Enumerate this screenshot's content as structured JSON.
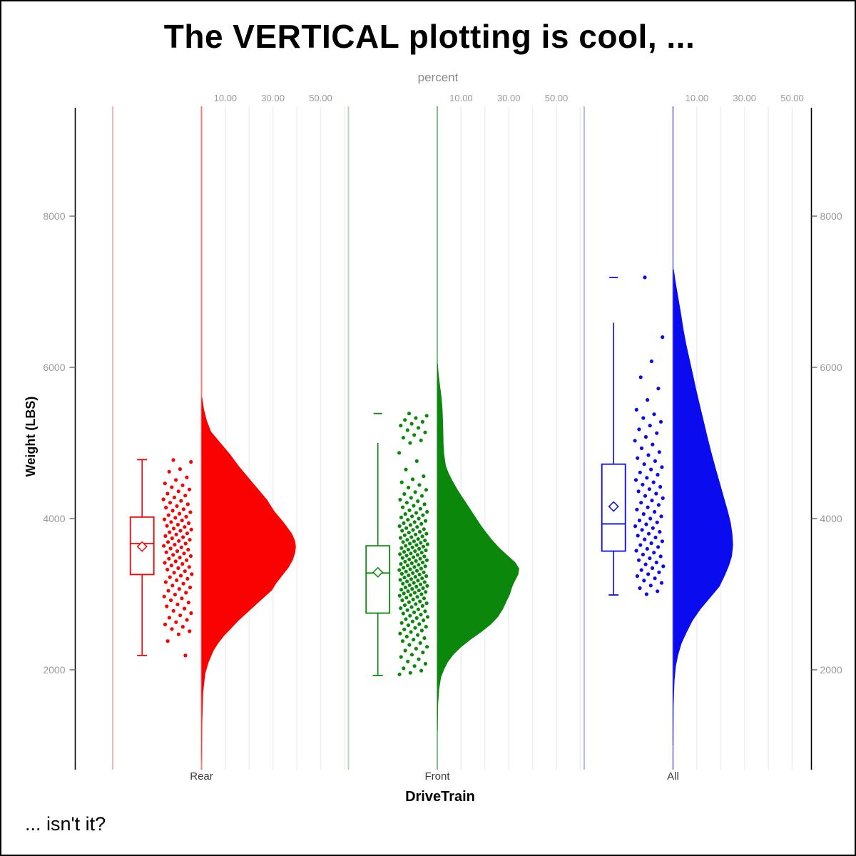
{
  "chart_data": {
    "type": "raincloud-half-violin-box-strip",
    "title": "The VERTICAL plotting is cool, ...",
    "footnote": "... isn't it?",
    "x_axis": {
      "label": "DriveTrain",
      "categories": [
        "Rear",
        "Front",
        "All"
      ]
    },
    "y_axis": {
      "label": "Weight (LBS)",
      "ticks": [
        2000,
        4000,
        6000,
        8000
      ],
      "range": [
        750,
        9400
      ]
    },
    "right_axis": {
      "ticks": [
        2000,
        4000,
        6000,
        8000
      ]
    },
    "top_axis": {
      "label": "percent",
      "tick_labels": [
        "10.00",
        "30.00",
        "50.00"
      ],
      "tick_values": [
        10,
        30,
        50
      ],
      "minor_step": 10,
      "max_percent": 60,
      "grid": true
    },
    "legend": "none",
    "colors": {
      "grid": "#efefef",
      "axis": "#000000",
      "tick": "#666666",
      "tick_label": "#999999"
    },
    "groups": [
      {
        "name": "Rear",
        "color": "#fa0202",
        "light_color": "#f6b6b6",
        "base_color": "#ef8080",
        "box": {
          "mean": 3630,
          "median": 3670,
          "q1": 3260,
          "q3": 4020,
          "whisker_low": 2190,
          "whisker_high": 4780,
          "cap_low": true,
          "cap_high": true,
          "max_dash": null
        },
        "violin": [
          [
            5600,
            0.3
          ],
          [
            5450,
            1
          ],
          [
            5300,
            2.2
          ],
          [
            5150,
            4
          ],
          [
            5000,
            8
          ],
          [
            4850,
            12
          ],
          [
            4700,
            15.5
          ],
          [
            4550,
            19.5
          ],
          [
            4400,
            23.5
          ],
          [
            4250,
            27.5
          ],
          [
            4100,
            30.5
          ],
          [
            3950,
            34.5
          ],
          [
            3800,
            38
          ],
          [
            3700,
            39.3
          ],
          [
            3630,
            39.6
          ],
          [
            3550,
            39.3
          ],
          [
            3450,
            38.3
          ],
          [
            3350,
            36.5
          ],
          [
            3250,
            34
          ],
          [
            3150,
            31.5
          ],
          [
            3050,
            29.5
          ],
          [
            2950,
            26
          ],
          [
            2850,
            22.5
          ],
          [
            2750,
            19
          ],
          [
            2650,
            15.5
          ],
          [
            2550,
            12.5
          ],
          [
            2450,
            9.5
          ],
          [
            2350,
            7
          ],
          [
            2250,
            5
          ],
          [
            2100,
            3
          ],
          [
            1950,
            1.6
          ],
          [
            1700,
            0.7
          ],
          [
            1300,
            0.3
          ],
          [
            800,
            0.1
          ]
        ],
        "points": [
          4775,
          4750,
          4655,
          4620,
          4545,
          4510,
          4465,
          4440,
          4415,
          4385,
          4360,
          4330,
          4305,
          4280,
          4255,
          4235,
          4210,
          4190,
          4165,
          4145,
          4125,
          4105,
          4085,
          4065,
          4045,
          4025,
          4010,
          3990,
          3975,
          3955,
          3940,
          3920,
          3905,
          3890,
          3870,
          3855,
          3840,
          3820,
          3805,
          3790,
          3770,
          3755,
          3740,
          3720,
          3705,
          3690,
          3670,
          3655,
          3640,
          3620,
          3605,
          3590,
          3570,
          3555,
          3540,
          3520,
          3505,
          3485,
          3470,
          3450,
          3435,
          3415,
          3400,
          3380,
          3360,
          3345,
          3325,
          3305,
          3285,
          3265,
          3245,
          3225,
          3205,
          3185,
          3160,
          3140,
          3115,
          3090,
          3070,
          3045,
          3020,
          2995,
          2970,
          2945,
          2920,
          2890,
          2865,
          2840,
          2810,
          2780,
          2750,
          2720,
          2690,
          2660,
          2630,
          2600,
          2570,
          2540,
          2510,
          2470,
          2380,
          2190
        ]
      },
      {
        "name": "Front",
        "color": "#0b870b",
        "light_color": "#b7d7b7",
        "base_color": "#85bb85",
        "box": {
          "mean": 3290,
          "median": 3280,
          "q1": 2750,
          "q3": 3640,
          "whisker_low": 1925,
          "whisker_high": 5000,
          "cap_low": true,
          "cap_high": false,
          "max_dash": 5390
        },
        "violin": [
          [
            6050,
            0.2
          ],
          [
            5900,
            0.6
          ],
          [
            5750,
            1.2
          ],
          [
            5600,
            1.8
          ],
          [
            5450,
            2.2
          ],
          [
            5300,
            2.4
          ],
          [
            5150,
            2.5
          ],
          [
            5000,
            2.6
          ],
          [
            4850,
            2.9
          ],
          [
            4700,
            3.6
          ],
          [
            4600,
            4.8
          ],
          [
            4500,
            6.4
          ],
          [
            4400,
            8.2
          ],
          [
            4300,
            10.2
          ],
          [
            4200,
            12.3
          ],
          [
            4100,
            14.4
          ],
          [
            4000,
            16.5
          ],
          [
            3900,
            18.6
          ],
          [
            3800,
            21
          ],
          [
            3700,
            23.5
          ],
          [
            3600,
            26.5
          ],
          [
            3500,
            30
          ],
          [
            3420,
            32.8
          ],
          [
            3340,
            34.4
          ],
          [
            3260,
            34
          ],
          [
            3180,
            32.7
          ],
          [
            3100,
            31.5
          ],
          [
            3000,
            30.5
          ],
          [
            2900,
            29
          ],
          [
            2800,
            27.5
          ],
          [
            2700,
            25.5
          ],
          [
            2600,
            22.5
          ],
          [
            2500,
            18.5
          ],
          [
            2400,
            14
          ],
          [
            2300,
            10
          ],
          [
            2200,
            6.8
          ],
          [
            2100,
            4.4
          ],
          [
            2000,
            2.8
          ],
          [
            1900,
            1.6
          ],
          [
            1750,
            0.8
          ],
          [
            1550,
            0.35
          ],
          [
            1200,
            0.12
          ]
        ],
        "points": [
          5390,
          5360,
          5330,
          5305,
          5280,
          5255,
          5230,
          5200,
          5170,
          5140,
          5105,
          5070,
          5035,
          5000,
          4870,
          4760,
          4650,
          4560,
          4520,
          4480,
          4445,
          4410,
          4380,
          4350,
          4325,
          4300,
          4275,
          4250,
          4230,
          4210,
          4190,
          4170,
          4150,
          4130,
          4110,
          4090,
          4075,
          4060,
          4045,
          4030,
          4015,
          4000,
          3985,
          3970,
          3955,
          3940,
          3930,
          3915,
          3900,
          3890,
          3875,
          3860,
          3850,
          3840,
          3825,
          3815,
          3800,
          3790,
          3780,
          3765,
          3755,
          3745,
          3730,
          3720,
          3710,
          3700,
          3690,
          3680,
          3670,
          3660,
          3650,
          3640,
          3630,
          3620,
          3610,
          3600,
          3590,
          3580,
          3570,
          3560,
          3550,
          3540,
          3530,
          3520,
          3510,
          3500,
          3490,
          3480,
          3470,
          3460,
          3450,
          3440,
          3430,
          3420,
          3410,
          3400,
          3390,
          3380,
          3370,
          3360,
          3350,
          3340,
          3330,
          3320,
          3310,
          3300,
          3290,
          3280,
          3270,
          3260,
          3250,
          3240,
          3230,
          3220,
          3210,
          3200,
          3190,
          3180,
          3170,
          3160,
          3150,
          3140,
          3130,
          3120,
          3110,
          3100,
          3090,
          3080,
          3070,
          3060,
          3050,
          3040,
          3030,
          3020,
          3010,
          3000,
          2990,
          2980,
          2965,
          2955,
          2945,
          2930,
          2920,
          2905,
          2895,
          2880,
          2870,
          2855,
          2845,
          2830,
          2815,
          2800,
          2790,
          2775,
          2760,
          2745,
          2730,
          2715,
          2700,
          2685,
          2670,
          2655,
          2640,
          2620,
          2605,
          2590,
          2570,
          2555,
          2535,
          2520,
          2500,
          2480,
          2460,
          2440,
          2420,
          2400,
          2380,
          2355,
          2330,
          2305,
          2280,
          2255,
          2230,
          2200,
          2170,
          2140,
          2110,
          2080,
          2050,
          2020,
          1990,
          1960,
          1940
        ]
      },
      {
        "name": "All",
        "color": "#0b0bef",
        "light_color": "#b9b9ea",
        "base_color": "#9191dd",
        "box": {
          "mean": 4160,
          "median": 3930,
          "q1": 3570,
          "q3": 4720,
          "whisker_low": 2990,
          "whisker_high": 6590,
          "cap_low": true,
          "cap_high": false,
          "max_dash": 7190
        },
        "violin": [
          [
            7300,
            0.3
          ],
          [
            7150,
            1
          ],
          [
            7000,
            1.8
          ],
          [
            6850,
            2.6
          ],
          [
            6700,
            3.4
          ],
          [
            6500,
            4.4
          ],
          [
            6300,
            5.6
          ],
          [
            6100,
            7
          ],
          [
            5900,
            8.4
          ],
          [
            5700,
            9.8
          ],
          [
            5500,
            11.3
          ],
          [
            5300,
            12.8
          ],
          [
            5100,
            14.3
          ],
          [
            4900,
            15.9
          ],
          [
            4700,
            17.6
          ],
          [
            4500,
            19.4
          ],
          [
            4300,
            21.2
          ],
          [
            4100,
            23
          ],
          [
            3950,
            24.2
          ],
          [
            3800,
            24.9
          ],
          [
            3650,
            25.2
          ],
          [
            3500,
            24.7
          ],
          [
            3380,
            23.5
          ],
          [
            3250,
            21.8
          ],
          [
            3100,
            19.5
          ],
          [
            2950,
            15.5
          ],
          [
            2800,
            11.5
          ],
          [
            2650,
            8.2
          ],
          [
            2500,
            5.8
          ],
          [
            2350,
            3.6
          ],
          [
            2200,
            2.2
          ],
          [
            2050,
            1.2
          ],
          [
            1850,
            0.6
          ],
          [
            1500,
            0.25
          ],
          [
            1000,
            0.08
          ]
        ],
        "points": [
          7190,
          6400,
          6080,
          5870,
          5720,
          5570,
          5440,
          5380,
          5330,
          5280,
          5230,
          5180,
          5130,
          5080,
          5030,
          4980,
          4930,
          4880,
          4840,
          4800,
          4760,
          4720,
          4680,
          4650,
          4610,
          4580,
          4540,
          4510,
          4480,
          4450,
          4420,
          4390,
          4360,
          4330,
          4300,
          4270,
          4240,
          4210,
          4180,
          4150,
          4120,
          4090,
          4060,
          4030,
          4000,
          3975,
          3950,
          3925,
          3900,
          3875,
          3850,
          3825,
          3800,
          3775,
          3750,
          3725,
          3700,
          3675,
          3650,
          3625,
          3600,
          3575,
          3550,
          3525,
          3500,
          3475,
          3450,
          3420,
          3395,
          3370,
          3345,
          3320,
          3290,
          3265,
          3240,
          3210,
          3180,
          3150,
          3115,
          3080,
          3040,
          3000
        ]
      }
    ]
  }
}
